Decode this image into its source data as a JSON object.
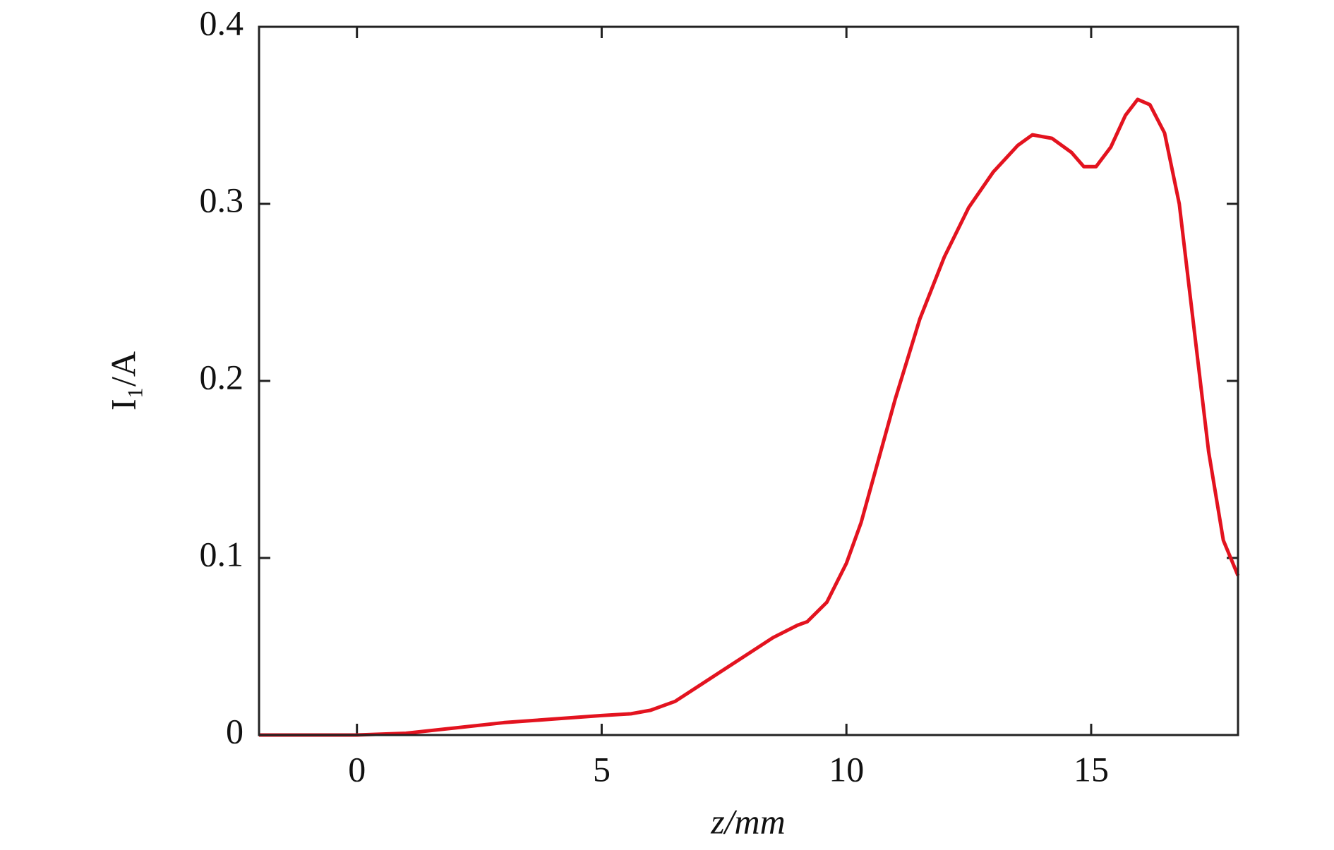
{
  "chart_data": {
    "type": "line",
    "xlabel": "z/mm",
    "ylabel": "I₁/A",
    "x": [
      -2,
      0,
      1,
      2,
      3,
      4,
      5,
      5.6,
      6,
      6.5,
      7,
      7.5,
      8,
      8.5,
      9,
      9.2,
      9.6,
      10,
      10.3,
      10.6,
      11,
      11.5,
      12,
      12.5,
      13,
      13.5,
      13.8,
      14.2,
      14.6,
      14.85,
      15.1,
      15.4,
      15.7,
      15.95,
      16.2,
      16.5,
      16.8,
      17.1,
      17.4,
      17.7,
      18
    ],
    "series": [
      {
        "color": "#e3131f",
        "values": [
          0,
          0,
          0.001,
          0.004,
          0.007,
          0.009,
          0.011,
          0.012,
          0.014,
          0.019,
          0.028,
          0.037,
          0.046,
          0.055,
          0.062,
          0.064,
          0.075,
          0.097,
          0.12,
          0.15,
          0.19,
          0.235,
          0.27,
          0.298,
          0.318,
          0.333,
          0.339,
          0.337,
          0.329,
          0.321,
          0.321,
          0.332,
          0.35,
          0.359,
          0.356,
          0.34,
          0.3,
          0.23,
          0.16,
          0.11,
          0.09
        ]
      }
    ],
    "xlim": [
      -2,
      18
    ],
    "xticks": [
      0,
      5,
      10,
      15
    ],
    "ylim": [
      0,
      0.4
    ],
    "yticks": [
      0,
      0.1,
      0.2,
      0.3,
      0.4
    ]
  }
}
